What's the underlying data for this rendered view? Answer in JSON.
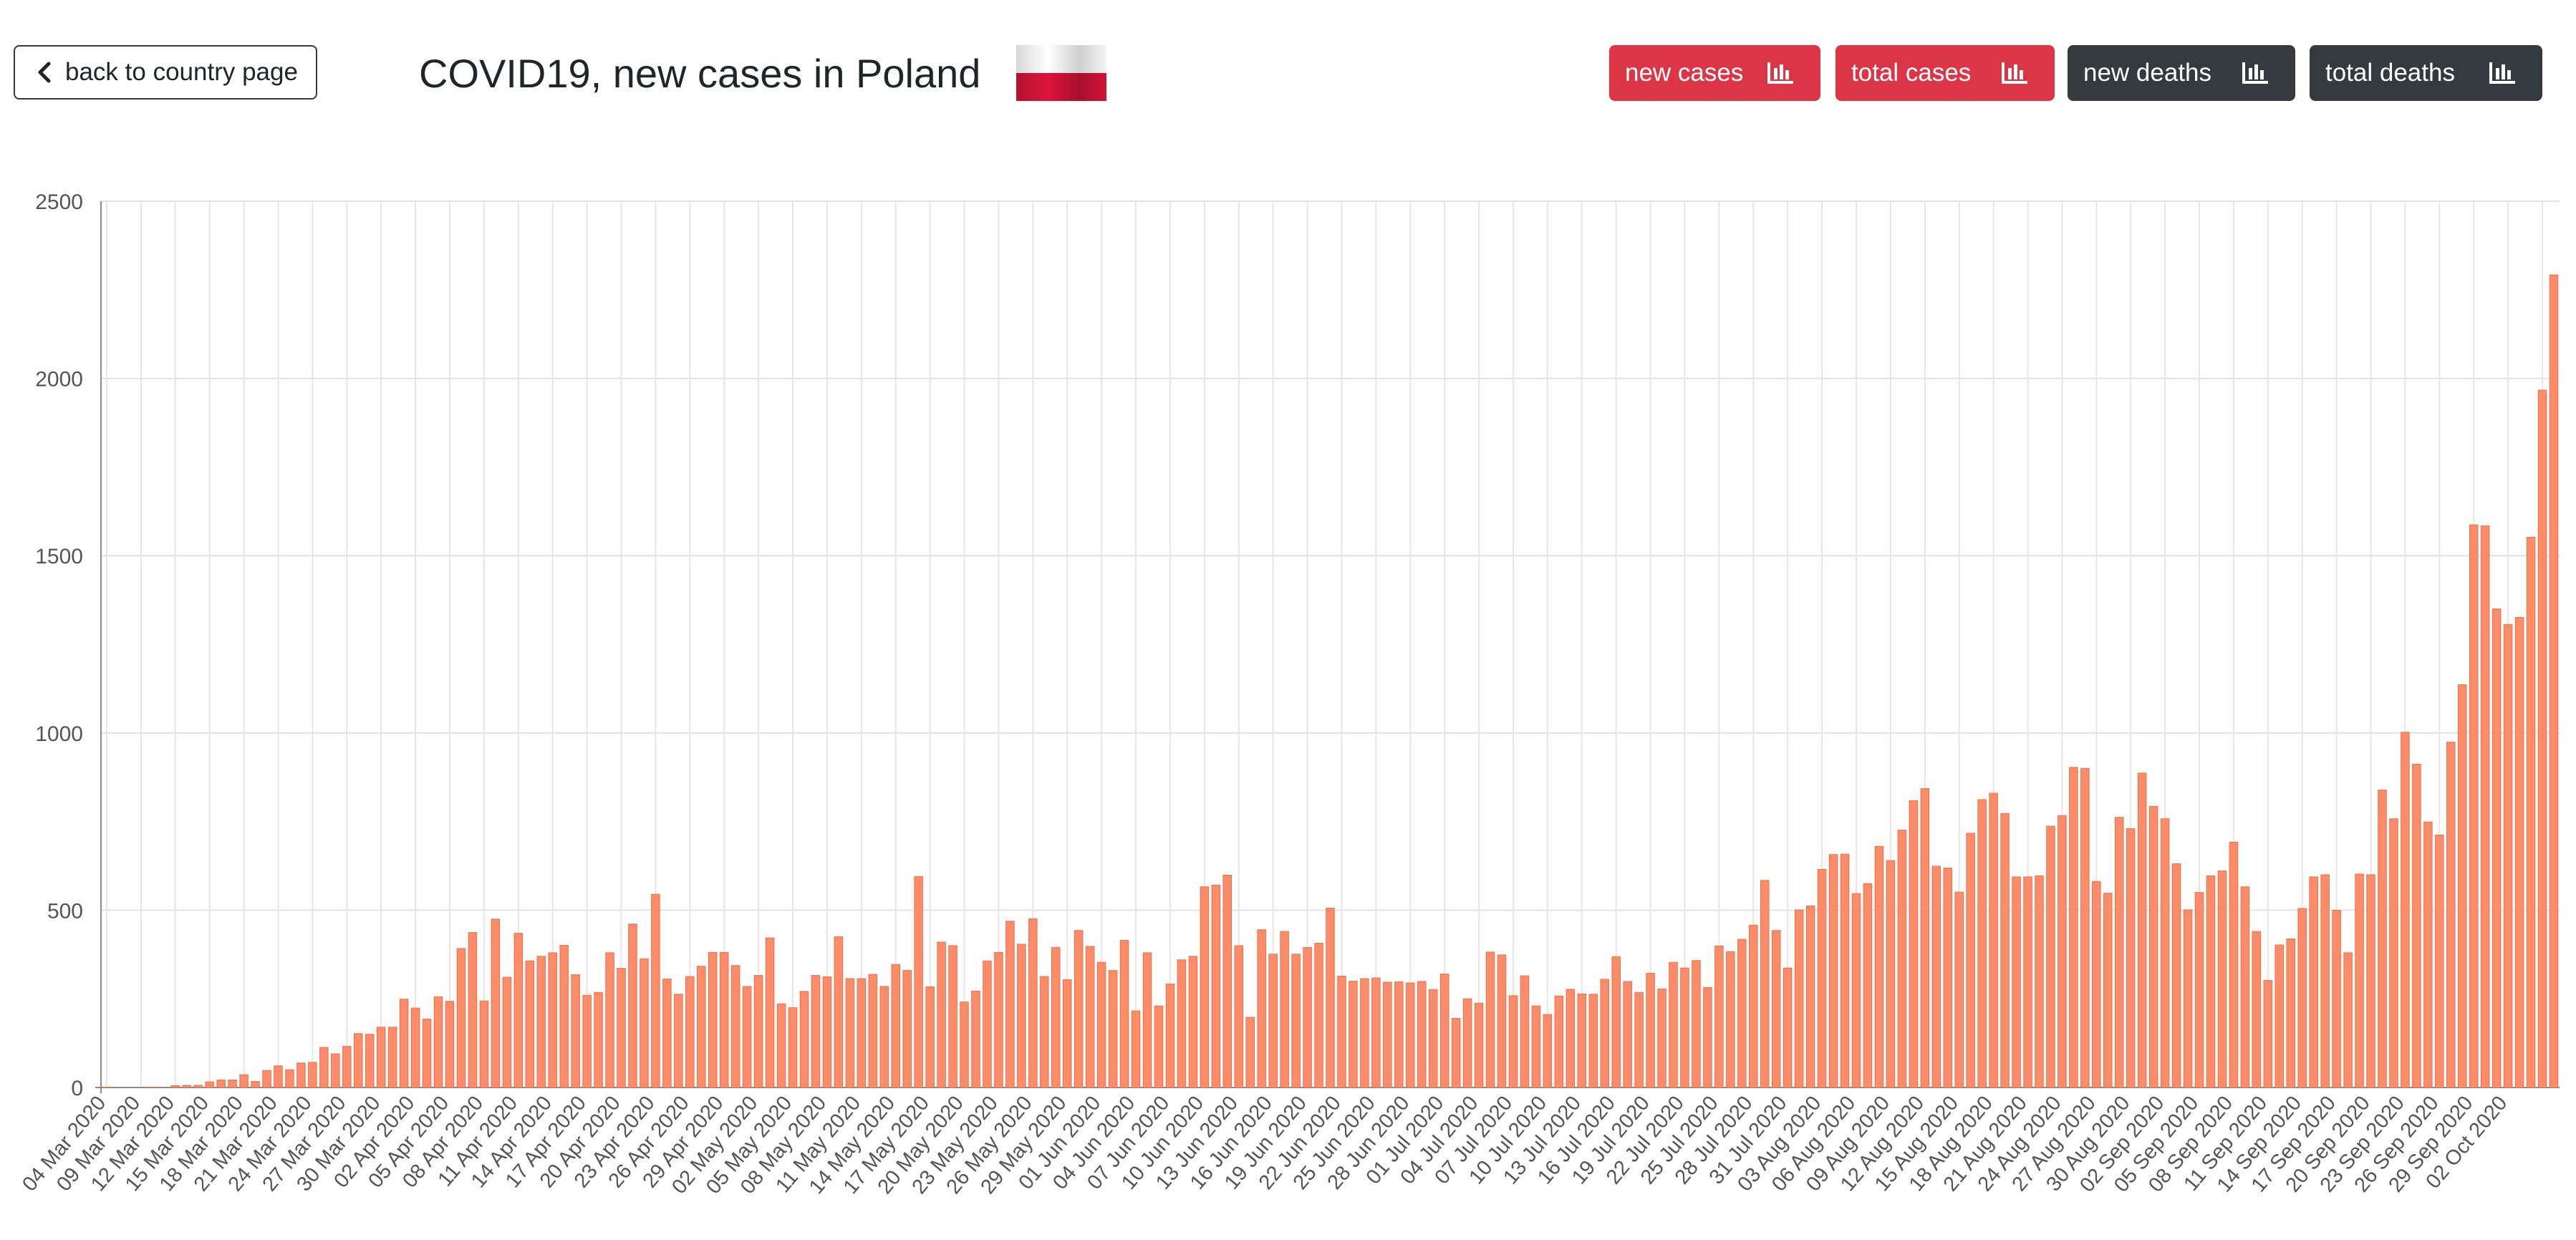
{
  "header": {
    "back_label": "back to country page",
    "title": "COVID19, new cases in Poland",
    "flag_colors": {
      "top": "#ffffff",
      "bottom": "#dc143c"
    }
  },
  "buttons": [
    {
      "label": "new cases",
      "style": "red",
      "icon": "bar-chart-icon"
    },
    {
      "label": "total cases",
      "style": "red",
      "icon": "bar-chart-icon"
    },
    {
      "label": "new deaths",
      "style": "dark",
      "icon": "bar-chart-icon"
    },
    {
      "label": "total deaths",
      "style": "dark",
      "icon": "bar-chart-icon"
    }
  ],
  "chart_data": {
    "type": "bar",
    "title": "",
    "xlabel": "",
    "ylabel": "",
    "ylim": [
      0,
      2500
    ],
    "yticks": [
      0,
      500,
      1000,
      1500,
      2000,
      2500
    ],
    "grid": true,
    "bar_color": "#ff8c69",
    "bar_edge_color": "#e8704b",
    "start_date": "04 Mar 2020",
    "x_tick_labels": [
      "04 Mar 2020",
      "09 Mar 2020",
      "12 Mar 2020",
      "15 Mar 2020",
      "18 Mar 2020",
      "21 Mar 2020",
      "24 Mar 2020",
      "27 Mar 2020",
      "30 Mar 2020",
      "02 Apr 2020",
      "05 Apr 2020",
      "08 Apr 2020",
      "11 Apr 2020",
      "14 Apr 2020",
      "17 Apr 2020",
      "20 Apr 2020",
      "23 Apr 2020",
      "26 Apr 2020",
      "29 Apr 2020",
      "02 May 2020",
      "05 May 2020",
      "08 May 2020",
      "11 May 2020",
      "14 May 2020",
      "17 May 2020",
      "20 May 2020",
      "23 May 2020",
      "26 May 2020",
      "29 May 2020",
      "01 Jun 2020",
      "04 Jun 2020",
      "07 Jun 2020",
      "10 Jun 2020",
      "13 Jun 2020",
      "16 Jun 2020",
      "19 Jun 2020",
      "22 Jun 2020",
      "25 Jun 2020",
      "28 Jun 2020",
      "01 Jul 2020",
      "04 Jul 2020",
      "07 Jul 2020",
      "10 Jul 2020",
      "13 Jul 2020",
      "16 Jul 2020",
      "19 Jul 2020",
      "22 Jul 2020",
      "25 Jul 2020",
      "28 Jul 2020",
      "31 Jul 2020",
      "03 Aug 2020",
      "06 Aug 2020",
      "09 Aug 2020",
      "12 Aug 2020",
      "15 Aug 2020",
      "18 Aug 2020",
      "21 Aug 2020",
      "24 Aug 2020",
      "27 Aug 2020",
      "30 Aug 2020",
      "02 Sep 2020",
      "05 Sep 2020",
      "08 Sep 2020",
      "11 Sep 2020",
      "14 Sep 2020",
      "17 Sep 2020",
      "20 Sep 2020",
      "23 Sep 2020",
      "26 Sep 2020",
      "29 Sep 2020",
      "02 Oct 2020"
    ],
    "values": [
      1,
      0,
      0,
      0,
      1,
      0,
      5,
      6,
      6,
      16,
      21,
      21,
      36,
      17,
      48,
      61,
      50,
      69,
      71,
      113,
      95,
      116,
      152,
      150,
      170,
      170,
      249,
      224,
      193,
      256,
      243,
      392,
      437,
      244,
      475,
      311,
      435,
      357,
      370,
      380,
      401,
      318,
      260,
      268,
      380,
      336,
      461,
      363,
      545,
      306,
      263,
      313,
      342,
      381,
      381,
      344,
      285,
      316,
      422,
      236,
      225,
      271,
      316,
      312,
      425,
      307,
      307,
      319,
      285,
      347,
      330,
      595,
      284,
      410,
      400,
      241,
      272,
      357,
      381,
      469,
      404,
      476,
      313,
      395,
      304,
      443,
      398,
      353,
      330,
      415,
      216,
      380,
      230,
      292,
      360,
      370,
      566,
      571,
      599,
      400,
      198,
      445,
      376,
      440,
      376,
      395,
      407,
      506,
      314,
      300,
      307,
      309,
      297,
      298,
      295,
      299,
      276,
      320,
      195,
      250,
      238,
      382,
      374,
      259,
      315,
      230,
      206,
      258,
      277,
      264,
      263,
      305,
      369,
      299,
      268,
      322,
      278,
      353,
      337,
      358,
      282,
      399,
      383,
      418,
      458,
      584,
      443,
      337,
      501,
      512,
      615,
      657,
      658,
      547,
      575,
      680,
      640,
      726,
      809,
      843,
      624,
      619,
      551,
      717,
      812,
      830,
      773,
      594,
      594,
      597,
      737,
      767,
      903,
      900,
      581,
      548,
      762,
      730,
      887,
      793,
      758,
      631,
      501,
      550,
      597,
      611,
      692,
      566,
      440,
      302,
      402,
      419,
      505,
      594,
      600,
      500,
      380,
      602,
      600,
      839,
      758,
      1002,
      912,
      749,
      712,
      974,
      1136,
      1587,
      1584,
      1350,
      1306,
      1326,
      1552,
      1967,
      2292
    ]
  }
}
